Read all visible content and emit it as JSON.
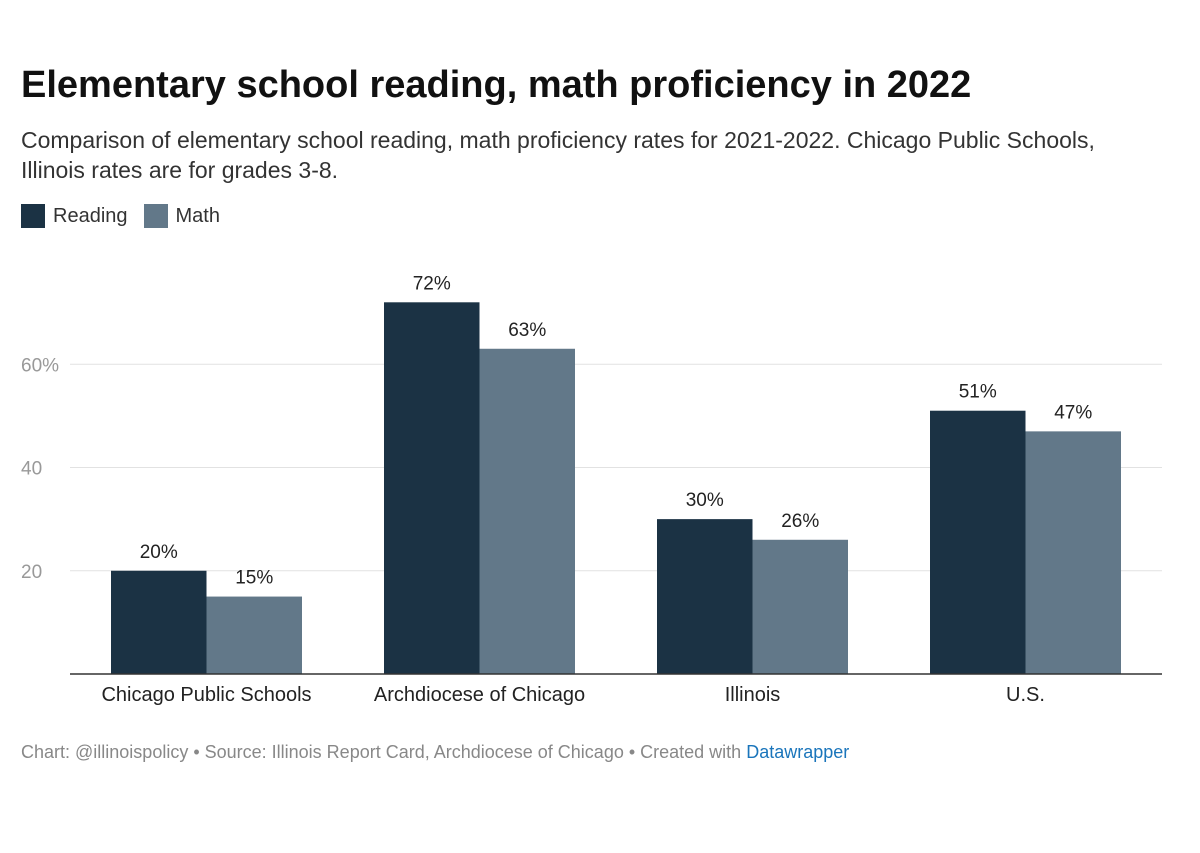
{
  "title": "Elementary school reading, math proficiency in 2022",
  "subtitle": "Comparison of elementary school reading, math proficiency rates for 2021-2022. Chicago Public Schools, Illinois rates are for grades 3-8.",
  "footer": {
    "text": "Chart: @illinoispolicy • Source: Illinois Report Card, Archdiocese of Chicago • Created with ",
    "brand": "Datawrapper"
  },
  "colors": {
    "reading": "#1b3244",
    "math": "#627889",
    "grid": "#e2e2e2",
    "axis": "#333333",
    "tick": "#999999"
  },
  "chart_data": {
    "type": "bar",
    "categories": [
      "Chicago Public Schools",
      "Archdiocese of Chicago",
      "Illinois",
      "U.S."
    ],
    "series": [
      {
        "name": "Reading",
        "values": [
          20,
          72,
          30,
          51
        ],
        "labels": [
          "20%",
          "72%",
          "30%",
          "51%"
        ]
      },
      {
        "name": "Math",
        "values": [
          15,
          63,
          26,
          47
        ],
        "labels": [
          "15%",
          "63%",
          "26%",
          "47%"
        ]
      }
    ],
    "yticks": [
      {
        "value": 20,
        "label": "20"
      },
      {
        "value": 40,
        "label": "40"
      },
      {
        "value": 60,
        "label": "60%"
      }
    ],
    "ylim": [
      0,
      80
    ],
    "grid": true,
    "legend": "top-left"
  }
}
